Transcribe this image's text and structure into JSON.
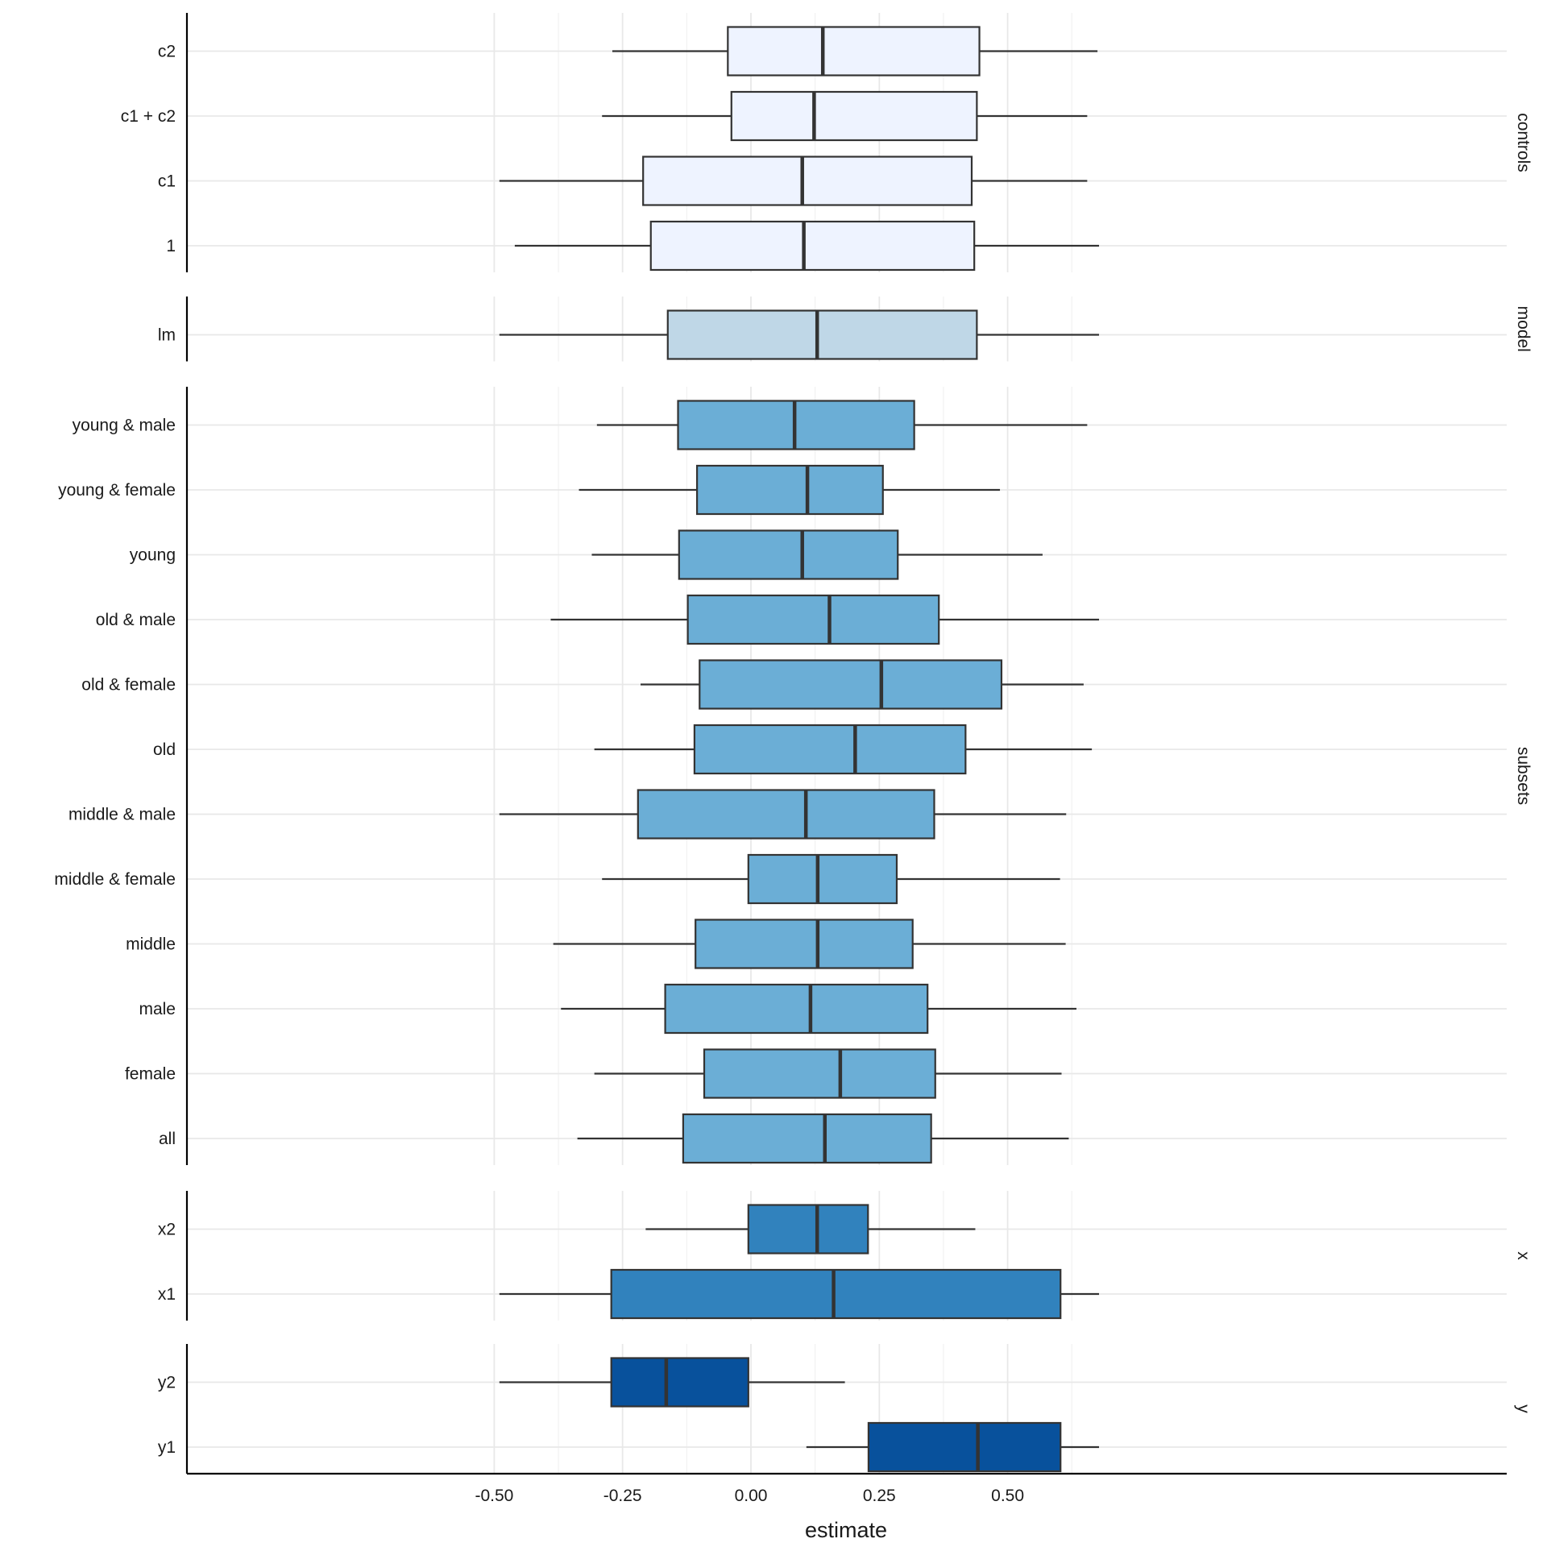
{
  "chart_data": {
    "type": "boxplot",
    "xlabel": "estimate",
    "ylabel": "",
    "xlim": [
      -0.5,
      0.68
    ],
    "x_ticks": [
      -0.5,
      -0.25,
      0.0,
      0.25,
      0.5
    ],
    "x_tick_labels": [
      "-0.50",
      "-0.25",
      "0.00",
      "0.25",
      "0.50"
    ],
    "grid": true,
    "facets": [
      {
        "name": "controls",
        "color": "#eef3ff",
        "rows": [
          {
            "label": "c2",
            "min": -0.27,
            "q1": -0.045,
            "median": 0.14,
            "q3": 0.445,
            "max": 0.675
          },
          {
            "label": "c1 + c2",
            "min": -0.29,
            "q1": -0.038,
            "median": 0.123,
            "q3": 0.44,
            "max": 0.655
          },
          {
            "label": "c1",
            "min": -0.49,
            "q1": -0.21,
            "median": 0.1,
            "q3": 0.43,
            "max": 0.655
          },
          {
            "label": "1",
            "min": -0.46,
            "q1": -0.195,
            "median": 0.103,
            "q3": 0.435,
            "max": 0.678
          }
        ]
      },
      {
        "name": "model",
        "color": "#bfd7e7",
        "rows": [
          {
            "label": "lm",
            "min": -0.49,
            "q1": -0.162,
            "median": 0.129,
            "q3": 0.44,
            "max": 0.678
          }
        ]
      },
      {
        "name": "subsets",
        "color": "#6baed6",
        "rows": [
          {
            "label": "young & male",
            "min": -0.3,
            "q1": -0.142,
            "median": 0.085,
            "q3": 0.318,
            "max": 0.655
          },
          {
            "label": "young & female",
            "min": -0.335,
            "q1": -0.105,
            "median": 0.11,
            "q3": 0.257,
            "max": 0.485
          },
          {
            "label": "young",
            "min": -0.31,
            "q1": -0.14,
            "median": 0.1,
            "q3": 0.286,
            "max": 0.568
          },
          {
            "label": "old & male",
            "min": -0.39,
            "q1": -0.123,
            "median": 0.153,
            "q3": 0.366,
            "max": 0.678
          },
          {
            "label": "old & female",
            "min": -0.215,
            "q1": -0.1,
            "median": 0.254,
            "q3": 0.488,
            "max": 0.648
          },
          {
            "label": "old",
            "min": -0.305,
            "q1": -0.11,
            "median": 0.203,
            "q3": 0.418,
            "max": 0.664
          },
          {
            "label": "middle & male",
            "min": -0.49,
            "q1": -0.22,
            "median": 0.107,
            "q3": 0.357,
            "max": 0.614
          },
          {
            "label": "middle & female",
            "min": -0.29,
            "q1": -0.005,
            "median": 0.13,
            "q3": 0.284,
            "max": 0.602
          },
          {
            "label": "middle",
            "min": -0.385,
            "q1": -0.108,
            "median": 0.13,
            "q3": 0.315,
            "max": 0.613
          },
          {
            "label": "male",
            "min": -0.37,
            "q1": -0.167,
            "median": 0.116,
            "q3": 0.344,
            "max": 0.634
          },
          {
            "label": "female",
            "min": -0.305,
            "q1": -0.091,
            "median": 0.174,
            "q3": 0.359,
            "max": 0.605
          },
          {
            "label": "all",
            "min": -0.338,
            "q1": -0.132,
            "median": 0.144,
            "q3": 0.351,
            "max": 0.619
          }
        ]
      },
      {
        "name": "x",
        "color": "#3182bd",
        "rows": [
          {
            "label": "x2",
            "min": -0.205,
            "q1": -0.005,
            "median": 0.129,
            "q3": 0.228,
            "max": 0.437
          },
          {
            "label": "x1",
            "min": -0.49,
            "q1": -0.272,
            "median": 0.161,
            "q3": 0.603,
            "max": 0.678
          }
        ]
      },
      {
        "name": "y",
        "color": "#08519c",
        "rows": [
          {
            "label": "y2",
            "min": -0.49,
            "q1": -0.272,
            "median": -0.165,
            "q3": -0.005,
            "max": 0.183
          },
          {
            "label": "y1",
            "min": 0.108,
            "q1": 0.229,
            "median": 0.442,
            "q3": 0.603,
            "max": 0.678
          }
        ]
      }
    ]
  }
}
